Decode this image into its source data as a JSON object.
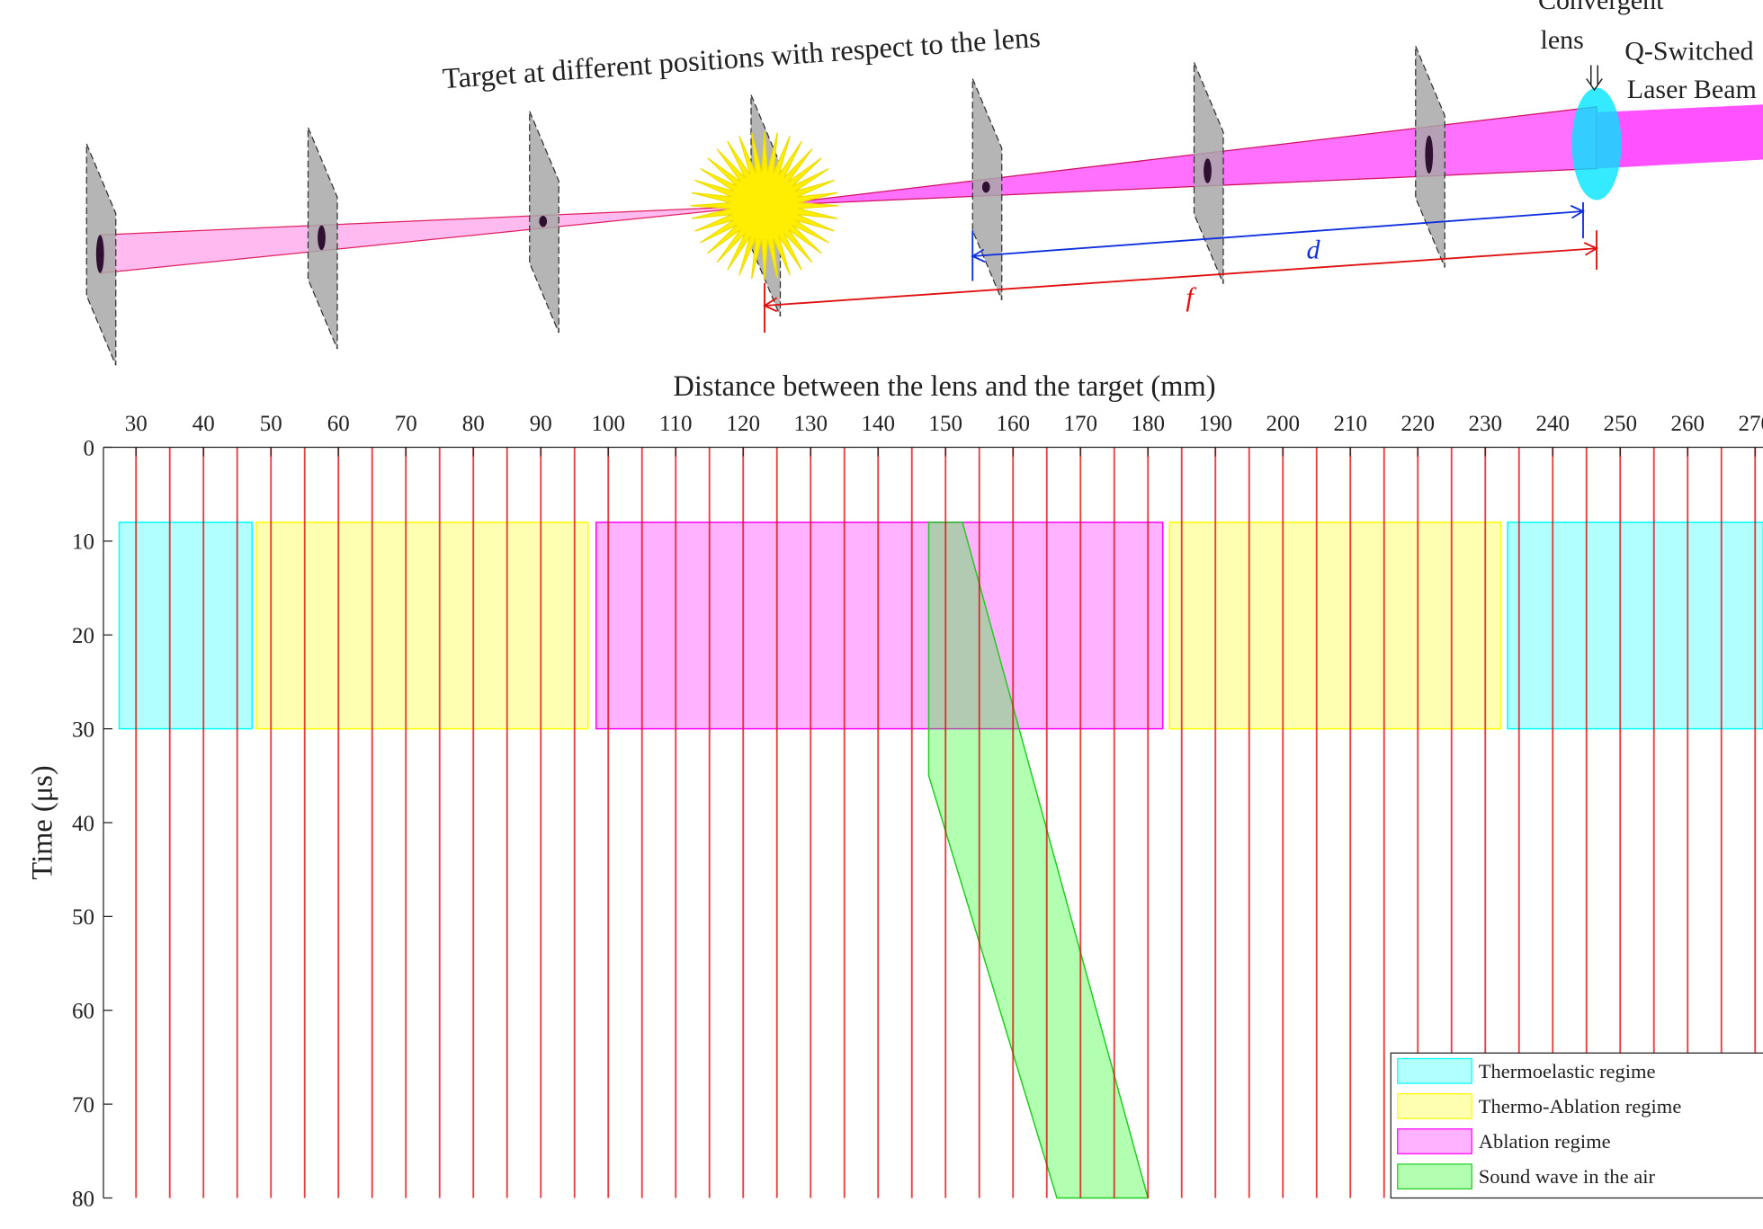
{
  "diagram": {
    "caption": "Target at different positions with respect to the lens",
    "lens_label": [
      "Convergent",
      "lens"
    ],
    "beam_label": [
      "Q-Switched",
      "Laser Beam"
    ],
    "d_label": "d",
    "f_label": "f"
  },
  "chart_data": {
    "type": "waveform",
    "x_label": "Distance between the lens and the target (mm)",
    "y_label": "Time (μs)",
    "xlim": [
      25.17,
      271.2
    ],
    "ylim": [
      0,
      80
    ],
    "y_inverted": true,
    "x_axis_position": "top",
    "xticks": [
      30,
      40,
      50,
      60,
      70,
      80,
      90,
      100,
      110,
      120,
      130,
      140,
      150,
      160,
      170,
      180,
      190,
      200,
      210,
      220,
      230,
      240,
      250,
      260,
      270
    ],
    "yticks": [
      0,
      10,
      20,
      30,
      40,
      50,
      60,
      70,
      80
    ],
    "traces": {
      "color": "#e00000",
      "x": [
        30,
        35,
        40,
        45,
        50,
        55,
        60,
        65,
        70,
        75,
        80,
        85,
        90,
        95,
        100,
        105,
        110,
        115,
        120,
        125,
        130,
        135,
        140,
        145,
        150,
        155,
        160,
        165,
        170,
        175,
        180,
        185,
        190,
        195,
        200,
        205,
        210,
        215,
        220,
        225,
        230,
        235,
        240,
        245,
        250,
        255,
        260,
        265,
        270
      ]
    },
    "regions": [
      {
        "name": "Thermoelastic regime",
        "color": "#00ffff",
        "spans": [
          [
            27.5,
            47.2
          ],
          [
            233.3,
            271.2
          ]
        ],
        "y": [
          8,
          30
        ]
      },
      {
        "name": "Thermo-Ablation regime",
        "color": "#ffff00",
        "spans": [
          [
            47.8,
            97
          ],
          [
            183.2,
            232.3
          ]
        ],
        "y": [
          8,
          30
        ]
      },
      {
        "name": "Ablation regime",
        "color": "#ff00ff",
        "spans": [
          [
            98.2,
            182.2
          ]
        ],
        "y": [
          8,
          30
        ]
      }
    ],
    "sound_wave": {
      "name": "Sound wave in the air",
      "color": "#00ff00",
      "x": [
        147.5,
        152.5,
        180,
        166.5,
        147.5
      ],
      "y": [
        8,
        8,
        80,
        80,
        35
      ]
    },
    "legend_position": "lower right"
  }
}
